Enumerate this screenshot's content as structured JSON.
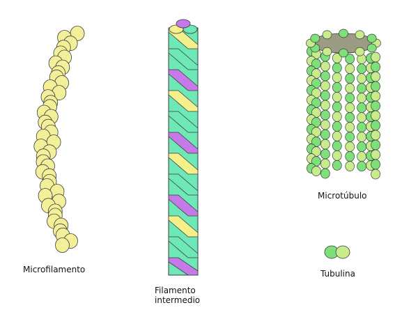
{
  "labels": {
    "microfilament": "Microfilamento",
    "intermediate_line1": "Filamento",
    "intermediate_line2": "intermedio",
    "microtubule": "Microtúbulo",
    "tubulin": "Tubulina"
  },
  "colors": {
    "actin_yellow": "#f4f09a",
    "filament_yellow": "#f4f08c",
    "filament_teal": "#6ee8b6",
    "filament_purple": "#c67ae8",
    "tubulin_green": "#7ee07a",
    "tubulin_light": "#c8ec8c",
    "tube_interior": "#9c9c84",
    "outline": "#3a3a3a"
  }
}
